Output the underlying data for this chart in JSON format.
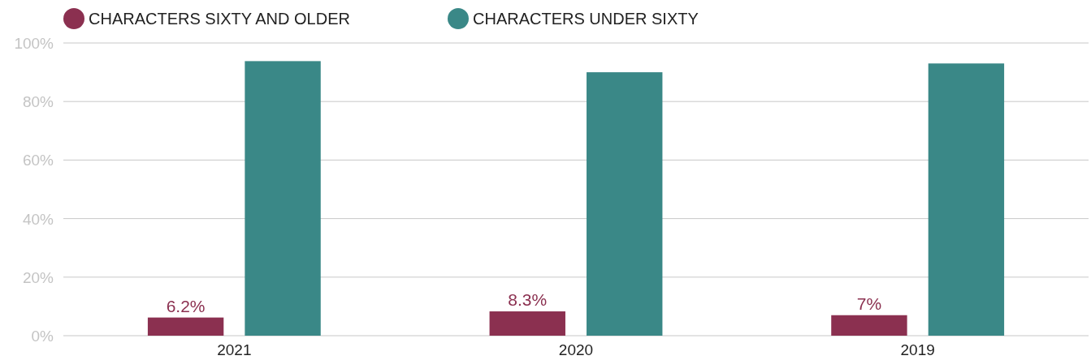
{
  "chart_data": {
    "type": "bar",
    "categories": [
      "2021",
      "2020",
      "2019"
    ],
    "series": [
      {
        "name": "CHARACTERS SIXTY AND OLDER",
        "color": "#8b3050",
        "values": [
          6.2,
          8.3,
          7
        ],
        "value_labels": [
          "6.2%",
          "8.3%",
          "7%"
        ]
      },
      {
        "name": "CHARACTERS UNDER SIXTY",
        "color": "#3a8887",
        "values": [
          93.8,
          90,
          93
        ]
      }
    ],
    "ylim": [
      0,
      100
    ],
    "yticks": [
      {
        "value": 0,
        "label": "0%"
      },
      {
        "value": 20,
        "label": "20%"
      },
      {
        "value": 40,
        "label": "40%"
      },
      {
        "value": 60,
        "label": "60%"
      },
      {
        "value": 80,
        "label": "80%"
      },
      {
        "value": 100,
        "label": "100%"
      }
    ],
    "grid": "y",
    "legend": "top left"
  }
}
